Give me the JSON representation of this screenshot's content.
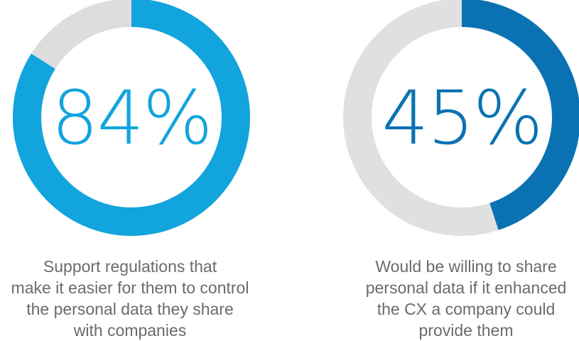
{
  "chart_data": [
    {
      "type": "pie",
      "style": "donut",
      "value": 84,
      "value_label": "84%",
      "caption_lines": [
        "Support regulations that",
        "make it easier for them to control",
        "the personal data they share",
        "with companies"
      ],
      "colors": {
        "fill": "#12a4dc",
        "track": "#dddddd",
        "text": "#12a4dc"
      }
    },
    {
      "type": "pie",
      "style": "donut",
      "value": 45,
      "value_label": "45%",
      "caption_lines": [
        "Would be willing to share",
        "personal data if it enhanced",
        "the CX a company could",
        "provide them"
      ],
      "colors": {
        "fill": "#0a72b3",
        "track": "#e0e0e0",
        "text": "#0a72b3"
      }
    }
  ]
}
